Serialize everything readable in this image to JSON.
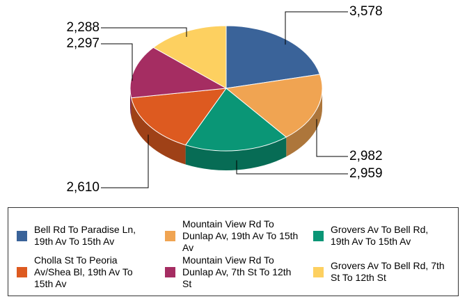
{
  "chart_data": {
    "type": "pie",
    "categories": [
      "Bell Rd To Paradise Ln, 19th Av To 15th Av",
      "Mountain View Rd To Dunlap Av, 19th Av To 15th Av",
      "Grovers Av To Bell Rd, 19th Av To 15th Av",
      "Cholla St To Peoria Av/Shea Bl, 19th Av To 15th Av",
      "Mountain View Rd To Dunlap Av, 7th St To 12th St",
      "Grovers Av To Bell Rd, 7th St To 12th St"
    ],
    "values": [
      3578,
      2982,
      2959,
      2610,
      2297,
      2288
    ],
    "value_labels": [
      "3,578",
      "2,982",
      "2,959",
      "2,610",
      "2,297",
      "2,288"
    ],
    "colors": [
      "#3a6399",
      "#f0a452",
      "#0a9676",
      "#dd5a20",
      "#a52d62",
      "#fdd060"
    ]
  }
}
